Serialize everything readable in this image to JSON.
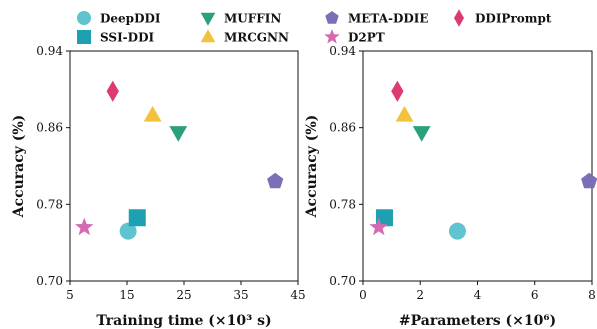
{
  "legend": [
    {
      "name": "DeepDDI",
      "marker": "circle",
      "color": "#5fc4cf"
    },
    {
      "name": "MUFFIN",
      "marker": "triangle-down",
      "color": "#2ba07d"
    },
    {
      "name": "META-DDIE",
      "marker": "pentagon",
      "color": "#7b70b8"
    },
    {
      "name": "DDIPrompt",
      "marker": "diamond",
      "color": "#dc3a74"
    },
    {
      "name": "SSI-DDI",
      "marker": "square",
      "color": "#1ca0b2"
    },
    {
      "name": "MRCGNN",
      "marker": "triangle-up",
      "color": "#f2c23a"
    },
    {
      "name": "D2PT",
      "marker": "star",
      "color": "#d66ab0"
    }
  ],
  "chart_data": [
    {
      "type": "scatter",
      "xlabel": "Training time",
      "xunit": "(×10³ s)",
      "ylabel": "Accuracy (%)",
      "xlim": [
        5,
        45
      ],
      "ylim": [
        0.7,
        0.94
      ],
      "xticks": [
        "5",
        "15",
        "25",
        "35",
        "45"
      ],
      "yticks": [
        "0.70",
        "0.78",
        "0.86",
        "0.94"
      ],
      "points": [
        {
          "series": "DeepDDI",
          "x": 15.2,
          "y": 0.752
        },
        {
          "series": "SSI-DDI",
          "x": 16.8,
          "y": 0.766
        },
        {
          "series": "MUFFIN",
          "x": 24.0,
          "y": 0.855
        },
        {
          "series": "MRCGNN",
          "x": 19.5,
          "y": 0.873
        },
        {
          "series": "META-DDIE",
          "x": 41.0,
          "y": 0.804
        },
        {
          "series": "DDIPrompt",
          "x": 12.5,
          "y": 0.898
        },
        {
          "series": "D2PT",
          "x": 7.5,
          "y": 0.756
        }
      ]
    },
    {
      "type": "scatter",
      "xlabel": "#Parameters",
      "xunit": "(×10⁶)",
      "ylabel": "Accuracy (%)",
      "xlim": [
        0,
        8
      ],
      "ylim": [
        0.7,
        0.94
      ],
      "xticks": [
        "0",
        "2",
        "4",
        "6",
        "8"
      ],
      "yticks": [
        "0.70",
        "0.78",
        "0.86",
        "0.94"
      ],
      "points": [
        {
          "series": "DeepDDI",
          "x": 3.3,
          "y": 0.752
        },
        {
          "series": "SSI-DDI",
          "x": 0.75,
          "y": 0.766
        },
        {
          "series": "MUFFIN",
          "x": 2.05,
          "y": 0.855
        },
        {
          "series": "MRCGNN",
          "x": 1.45,
          "y": 0.873
        },
        {
          "series": "META-DDIE",
          "x": 7.9,
          "y": 0.804
        },
        {
          "series": "DDIPrompt",
          "x": 1.2,
          "y": 0.898
        },
        {
          "series": "D2PT",
          "x": 0.55,
          "y": 0.756
        }
      ]
    }
  ]
}
